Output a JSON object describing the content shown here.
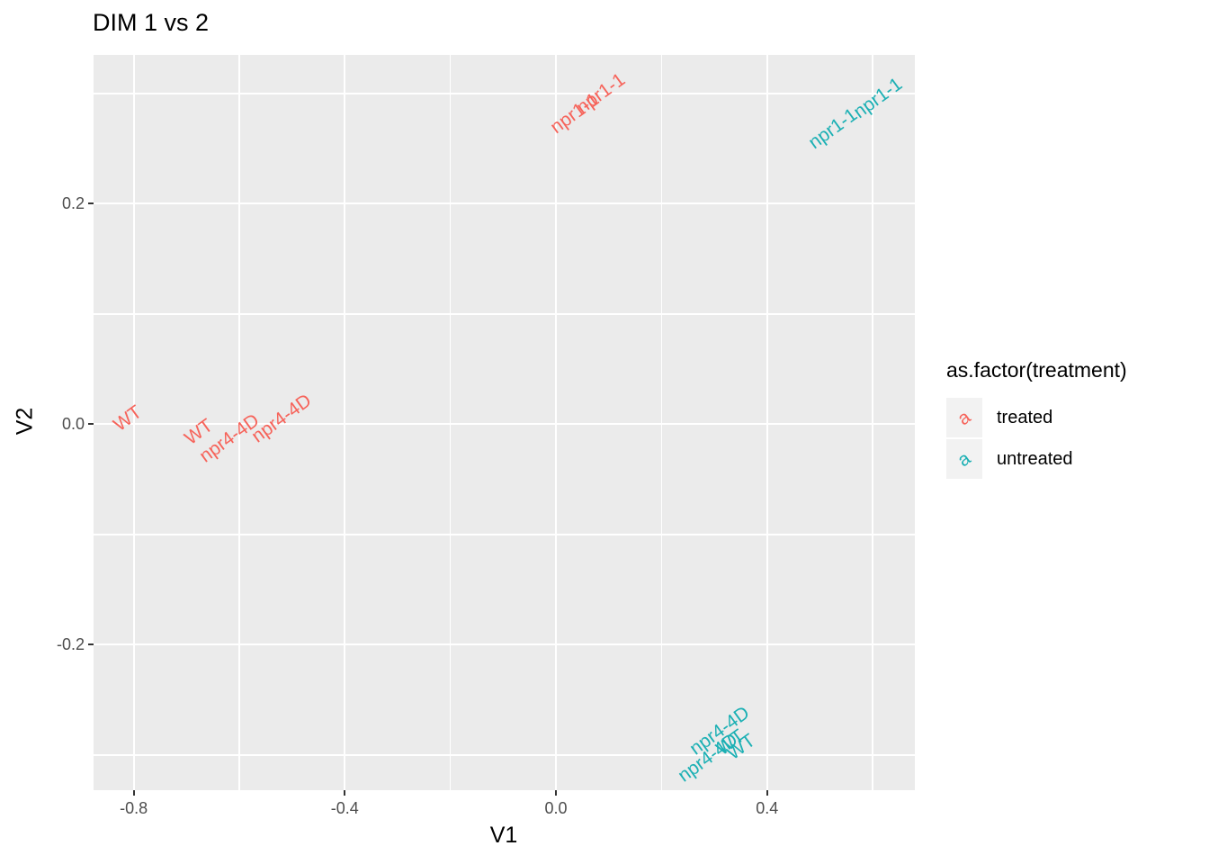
{
  "chart_data": {
    "type": "scatter",
    "geom": "text_labels",
    "title": "DIM 1 vs 2",
    "xlabel": "V1",
    "ylabel": "V2",
    "xlim": [
      -0.876,
      0.68
    ],
    "ylim": [
      -0.332,
      0.335
    ],
    "x_major_ticks": [
      -0.8,
      -0.4,
      0.0,
      0.4
    ],
    "x_tick_labels": [
      "-0.8",
      "-0.4",
      "0.0",
      "0.4"
    ],
    "x_minor_ticks": [
      -0.6,
      -0.2,
      0.2,
      0.6
    ],
    "y_major_ticks": [
      0.2,
      0.0,
      -0.2
    ],
    "y_tick_labels": [
      "0.2",
      "0.0",
      "-0.2"
    ],
    "y_minor_ticks": [
      0.3,
      0.1,
      -0.1,
      -0.3
    ],
    "grid": true,
    "label_rotation_deg": 36,
    "panel_background": "#EBEBEB",
    "gridline_color": "#FFFFFF",
    "tick_label_color": "#4D4D4D",
    "legend": {
      "title": "as.factor(treatment)",
      "position": "right",
      "key_background": "#F2F2F2",
      "key_glyph": "a",
      "entries": [
        {
          "label": "treated",
          "color": "#F6635A"
        },
        {
          "label": "untreated",
          "color": "#1CB0B4"
        }
      ]
    },
    "series": [
      {
        "name": "treated",
        "color": "#F6635A",
        "points": [
          {
            "label": "WT",
            "x": -0.812,
            "y": 0.005
          },
          {
            "label": "WT",
            "x": -0.677,
            "y": -0.007
          },
          {
            "label": "npr4-4D",
            "x": -0.619,
            "y": -0.013
          },
          {
            "label": "npr4-4D",
            "x": -0.52,
            "y": 0.005
          },
          {
            "label": "npr1-1",
            "x": 0.035,
            "y": 0.282
          },
          {
            "label": "npr1-1",
            "x": 0.085,
            "y": 0.3
          }
        ]
      },
      {
        "name": "untreated",
        "color": "#1CB0B4",
        "points": [
          {
            "label": "npr1-1",
            "x": 0.525,
            "y": 0.268
          },
          {
            "label": "npr1-1",
            "x": 0.61,
            "y": 0.296
          },
          {
            "label": "npr4-4D",
            "x": 0.31,
            "y": -0.278
          },
          {
            "label": "npr4-4D",
            "x": 0.288,
            "y": -0.303
          },
          {
            "label": "WT",
            "x": 0.331,
            "y": -0.289
          },
          {
            "label": "WT",
            "x": 0.351,
            "y": -0.293
          }
        ]
      }
    ]
  }
}
